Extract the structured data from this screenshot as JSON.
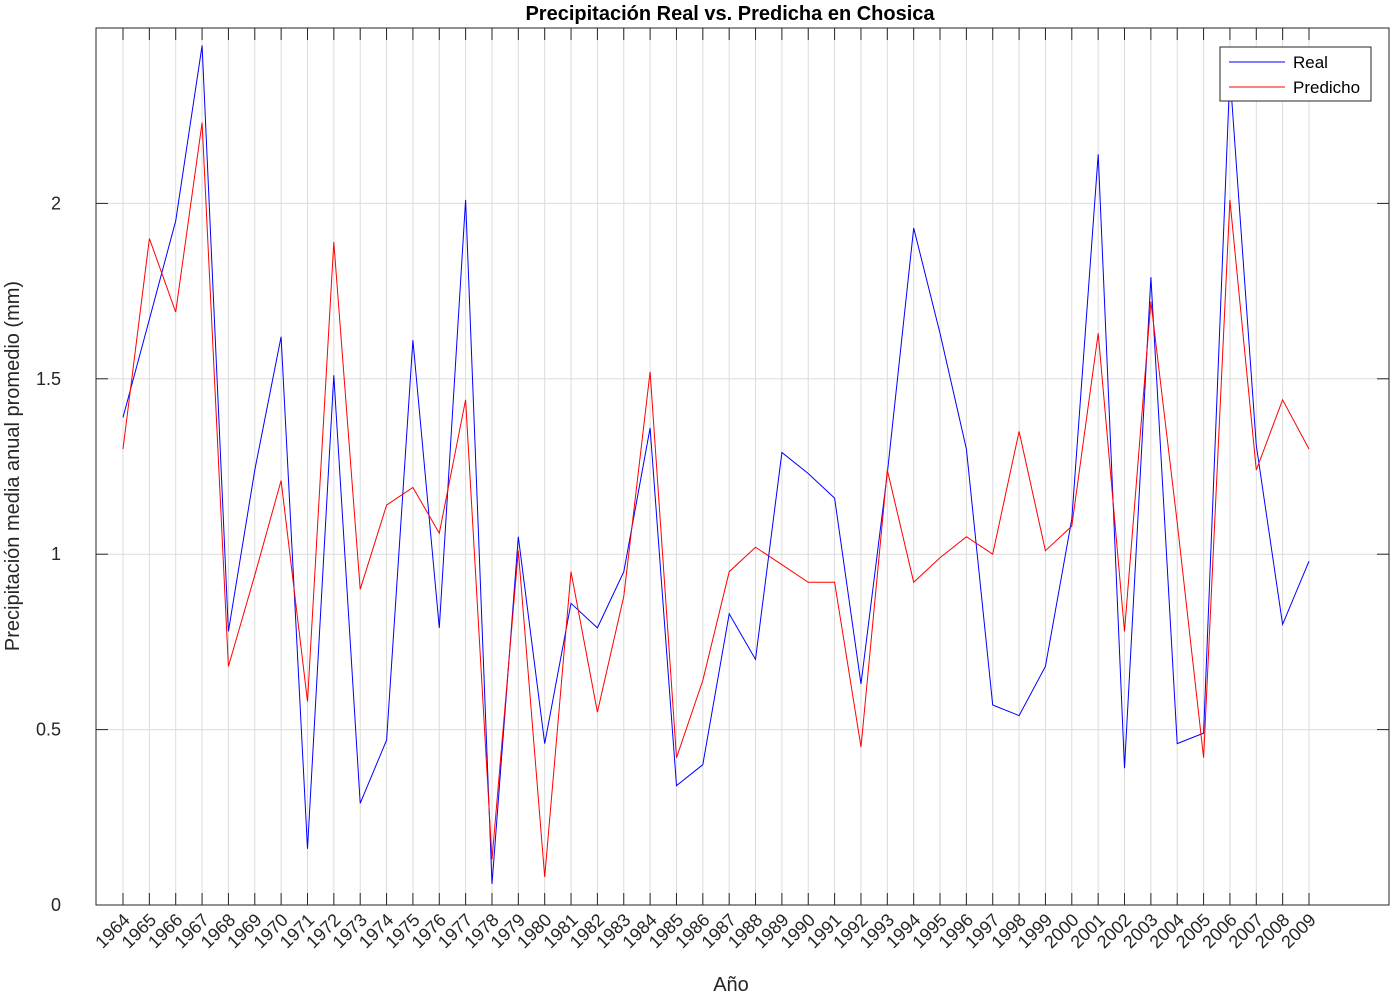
{
  "chart_data": {
    "type": "line",
    "title": "Precipitación Real vs. Predicha en Chosica",
    "xlabel": "Año",
    "ylabel": "Precipitación media anual promedio (mm)",
    "x": [
      1964,
      1965,
      1966,
      1967,
      1968,
      1969,
      1970,
      1971,
      1972,
      1973,
      1974,
      1975,
      1976,
      1977,
      1978,
      1979,
      1980,
      1981,
      1982,
      1983,
      1984,
      1985,
      1986,
      1987,
      1988,
      1989,
      1990,
      1991,
      1992,
      1993,
      1994,
      1995,
      1996,
      1997,
      1998,
      1999,
      2000,
      2001,
      2002,
      2003,
      2004,
      2005,
      2006,
      2007,
      2008,
      2009
    ],
    "xlim": [
      1964,
      2009
    ],
    "ylim": [
      0,
      2.5
    ],
    "yticks": [
      0,
      0.5,
      1,
      1.5,
      2
    ],
    "ytick_labels": [
      "0",
      "0.5",
      "1",
      "1.5",
      "2"
    ],
    "grid": true,
    "legend_position": "top-right",
    "series": [
      {
        "name": "Real",
        "color": "#0000ff",
        "values": [
          1.39,
          1.67,
          1.95,
          2.45,
          0.78,
          1.24,
          1.62,
          0.16,
          1.51,
          0.29,
          0.47,
          1.61,
          0.79,
          2.01,
          0.06,
          1.05,
          0.46,
          0.86,
          0.79,
          0.95,
          1.36,
          0.34,
          0.4,
          0.83,
          0.7,
          1.29,
          1.23,
          1.16,
          0.63,
          1.23,
          1.93,
          1.63,
          1.3,
          0.57,
          0.54,
          0.68,
          1.1,
          2.14,
          0.39,
          1.79,
          0.46,
          0.49,
          2.37,
          1.31,
          0.8,
          0.98
        ]
      },
      {
        "name": "Predicho",
        "color": "#ff0000",
        "values": [
          1.3,
          1.9,
          1.69,
          2.23,
          0.68,
          0.94,
          1.21,
          0.58,
          1.89,
          0.9,
          1.14,
          1.19,
          1.06,
          1.44,
          0.13,
          1.01,
          0.08,
          0.95,
          0.55,
          0.88,
          1.52,
          0.42,
          0.64,
          0.95,
          1.02,
          0.97,
          0.92,
          0.92,
          0.45,
          1.24,
          0.92,
          0.99,
          1.05,
          1.0,
          1.35,
          1.01,
          1.08,
          1.63,
          0.78,
          1.72,
          1.09,
          0.42,
          2.01,
          1.24,
          1.44,
          1.3
        ]
      }
    ]
  }
}
